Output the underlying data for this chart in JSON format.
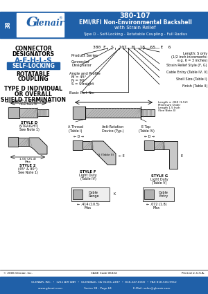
{
  "bg_color": "#ffffff",
  "blue": "#2060a8",
  "white": "#ffffff",
  "black": "#000000",
  "gray1": "#888888",
  "gray2": "#aaaaaa",
  "gray3": "#cccccc",
  "title_number": "380-107",
  "title_line1": "EMI/RFI Non-Environmental Backshell",
  "title_line2": "with Strain Relief",
  "title_line3": "Type D - Self-Locking - Rotatable Coupling - Full Radius",
  "series_label": "38",
  "footer_line1": "GLENAIR, INC.  •  1211 AIR WAY  •  GLENDALE, CA 91201-2497  •  818-247-6000  •  FAX 818-500-9912",
  "footer_line2": "www.glenair.com                         Series 38 - Page 64                         E-Mail: sales@glenair.com",
  "copyright": "© 2006 Glenair, Inc.",
  "cage_code": "CAGE Code 06324",
  "printed": "Printed in U.S.A."
}
